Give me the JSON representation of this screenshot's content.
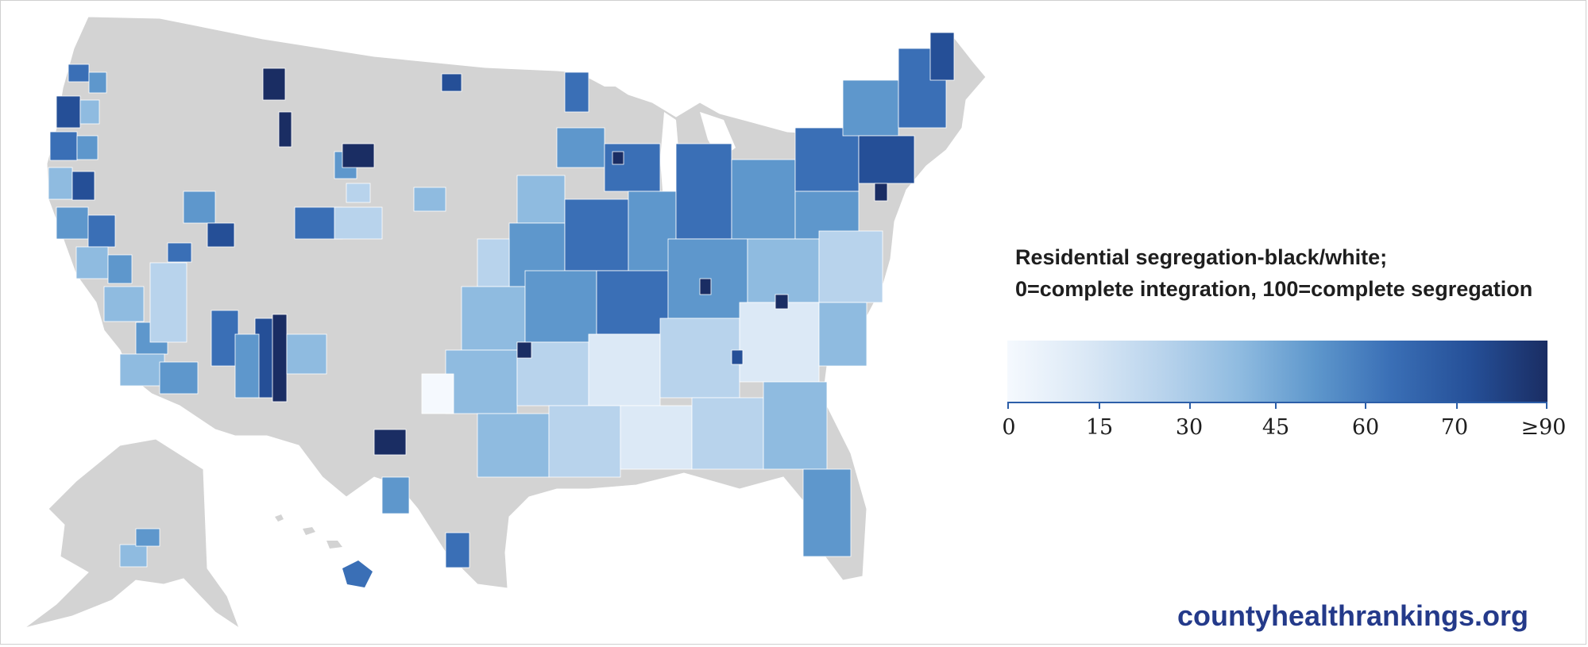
{
  "legend": {
    "title_line1": "Residential segregation-black/white;",
    "title_line2": "0=complete integration, 100=complete segregation",
    "ticks": [
      "0",
      "15",
      "30",
      "45",
      "60",
      "70",
      "≥90"
    ]
  },
  "footer": {
    "site": "countyhealthrankings.org"
  },
  "colors": {
    "no_data": "#d3d3d3",
    "scale": [
      "#f5f9fe",
      "#dce9f6",
      "#b8d3ec",
      "#8fbbe0",
      "#5e97cc",
      "#3a6fb6",
      "#254f97",
      "#1a2d63"
    ],
    "border": "#ffffff"
  },
  "map": {
    "region": "United States counties",
    "measure": "Residential segregation - black/white index"
  }
}
